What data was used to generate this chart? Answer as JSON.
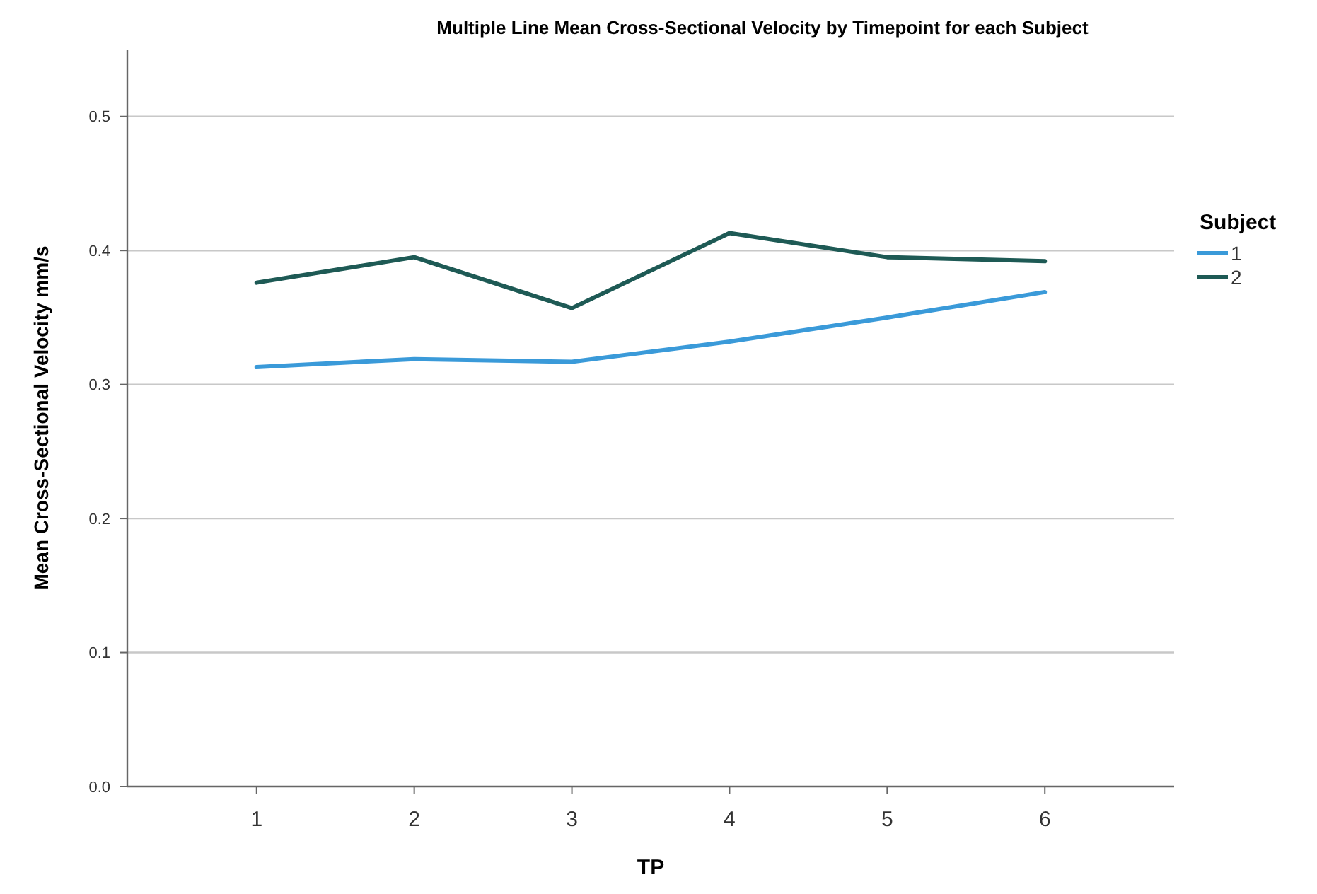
{
  "chart_data": {
    "type": "line",
    "title": "Multiple Line Mean Cross-Sectional Velocity by Timepoint for each Subject",
    "xlabel": "TP",
    "ylabel": "Mean Cross-Sectional Velocity mm/s",
    "legend_title": "Subject",
    "categories": [
      "1",
      "2",
      "3",
      "4",
      "5",
      "6"
    ],
    "series": [
      {
        "name": "1",
        "color": "#3a9ad9",
        "values": [
          0.313,
          0.319,
          0.317,
          0.332,
          0.35,
          0.369
        ]
      },
      {
        "name": "2",
        "color": "#1e5a55",
        "values": [
          0.376,
          0.395,
          0.357,
          0.413,
          0.395,
          0.392
        ]
      }
    ],
    "ylim": [
      0,
      0.55
    ],
    "yticks": [
      {
        "value": 0,
        "label": "0.0"
      },
      0.1,
      0.2,
      0.3,
      0.4,
      0.5
    ],
    "grid": "y",
    "legend": "right",
    "marker": "none",
    "line_style": "solid"
  }
}
